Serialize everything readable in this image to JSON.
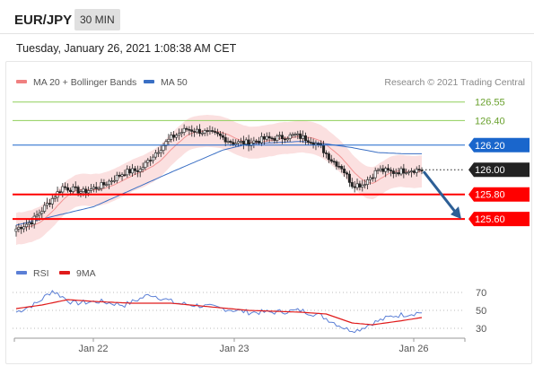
{
  "header": {
    "pair": "EUR/JPY",
    "timeframe": "30 MIN",
    "datetime": "Tuesday, January 26, 2021 1:08:38 AM CET"
  },
  "colors": {
    "ma20": "#f08080",
    "band_fill": "#f7c7c7",
    "ma50": "#3a6fc4",
    "resistance": "#8fcf5a",
    "support": "#ff0000",
    "pivot": "#1a66cc",
    "last": "#222222",
    "arrow": "#2d5f96",
    "rsi": "#5b7fd6",
    "rsi_ma": "#e01b1b",
    "candle": "#222222"
  },
  "chart_data": [
    {
      "type": "candlestick",
      "legend": [
        {
          "key": "ma20",
          "label": "MA 20 + Bollinger Bands"
        },
        {
          "key": "ma50",
          "label": "MA 50"
        }
      ],
      "legend_placement": "top-left",
      "attribution": "Research © 2021 Trading Central",
      "x_ticks": [
        "Jan 22",
        "Jan 23",
        "Jan 26"
      ],
      "ylim": [
        125.47,
        126.65
      ],
      "levels": [
        {
          "value": 126.55,
          "label": "126.55",
          "kind": "resistance"
        },
        {
          "value": 126.4,
          "label": "126.40",
          "kind": "resistance"
        },
        {
          "value": 126.2,
          "label": "126.20",
          "kind": "pivot"
        },
        {
          "value": 126.0,
          "label": "126.00",
          "kind": "last"
        },
        {
          "value": 125.8,
          "label": "125.80",
          "kind": "support"
        },
        {
          "value": 125.6,
          "label": "125.60",
          "kind": "support"
        }
      ],
      "arrow": {
        "from": 126.0,
        "to": 125.6,
        "direction": "down"
      },
      "close_keypoints": [
        [
          0,
          125.52
        ],
        [
          6,
          125.58
        ],
        [
          12,
          125.72
        ],
        [
          18,
          125.86
        ],
        [
          26,
          125.82
        ],
        [
          34,
          125.88
        ],
        [
          42,
          125.98
        ],
        [
          48,
          126.0
        ],
        [
          54,
          126.14
        ],
        [
          60,
          126.26
        ],
        [
          66,
          126.33
        ],
        [
          72,
          126.31
        ],
        [
          78,
          126.28
        ],
        [
          84,
          126.22
        ],
        [
          90,
          126.22
        ],
        [
          96,
          126.25
        ],
        [
          102,
          126.26
        ],
        [
          108,
          126.28
        ],
        [
          114,
          126.24
        ],
        [
          118,
          126.18
        ],
        [
          122,
          126.08
        ],
        [
          126,
          126.02
        ],
        [
          130,
          125.88
        ],
        [
          134,
          125.88
        ],
        [
          140,
          126.0
        ],
        [
          146,
          125.98
        ],
        [
          152,
          126.0
        ],
        [
          157,
          126.0
        ]
      ],
      "ma50_keypoints": [
        [
          0,
          125.55
        ],
        [
          30,
          125.7
        ],
        [
          60,
          125.98
        ],
        [
          80,
          126.16
        ],
        [
          90,
          126.21
        ],
        [
          100,
          126.22
        ],
        [
          110,
          126.23
        ],
        [
          120,
          126.21
        ],
        [
          130,
          126.18
        ],
        [
          140,
          126.14
        ],
        [
          150,
          126.13
        ],
        [
          157,
          126.13
        ]
      ],
      "bollinger_width": 0.13
    },
    {
      "type": "line",
      "title": "RSI",
      "legend": [
        {
          "key": "rsi",
          "label": "RSI"
        },
        {
          "key": "rsi_ma",
          "label": "9MA"
        }
      ],
      "ylim": [
        22,
        78
      ],
      "y_ticks": [
        30,
        50,
        70
      ],
      "rsi_keypoints": [
        [
          0,
          48
        ],
        [
          8,
          58
        ],
        [
          14,
          72
        ],
        [
          22,
          58
        ],
        [
          32,
          60
        ],
        [
          42,
          56
        ],
        [
          52,
          68
        ],
        [
          62,
          58
        ],
        [
          72,
          55
        ],
        [
          80,
          52
        ],
        [
          90,
          48
        ],
        [
          100,
          48
        ],
        [
          110,
          50
        ],
        [
          118,
          44
        ],
        [
          124,
          35
        ],
        [
          128,
          29
        ],
        [
          132,
          28
        ],
        [
          138,
          36
        ],
        [
          146,
          44
        ],
        [
          152,
          46
        ],
        [
          157,
          48
        ]
      ],
      "ma9_keypoints": [
        [
          0,
          52
        ],
        [
          10,
          56
        ],
        [
          20,
          62
        ],
        [
          30,
          60
        ],
        [
          45,
          58
        ],
        [
          60,
          58
        ],
        [
          75,
          54
        ],
        [
          90,
          50
        ],
        [
          110,
          48
        ],
        [
          120,
          46
        ],
        [
          130,
          36
        ],
        [
          138,
          34
        ],
        [
          148,
          38
        ],
        [
          157,
          42
        ]
      ]
    }
  ]
}
